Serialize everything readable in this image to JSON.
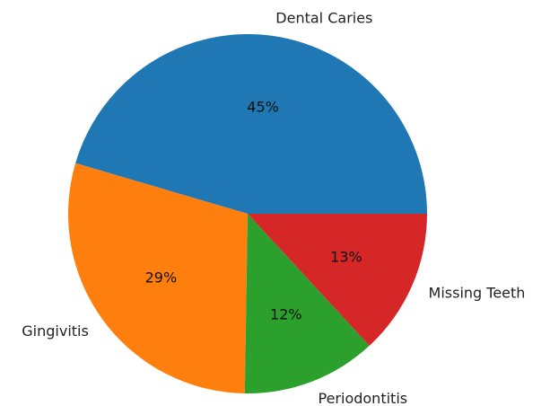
{
  "chart_data": {
    "type": "pie",
    "title": "",
    "start_angle_deg": 0,
    "direction": "counterclockwise",
    "slices": [
      {
        "label": "Dental Caries",
        "value": 45,
        "pct_label": "45%",
        "color": "#1f77b4"
      },
      {
        "label": "Gingivitis",
        "value": 29,
        "pct_label": "29%",
        "color": "#ff7f0e"
      },
      {
        "label": "Periodontitis",
        "value": 12,
        "pct_label": "12%",
        "color": "#2ca02c"
      },
      {
        "label": "Missing Teeth",
        "value": 13,
        "pct_label": "13%",
        "color": "#d62728"
      }
    ]
  }
}
